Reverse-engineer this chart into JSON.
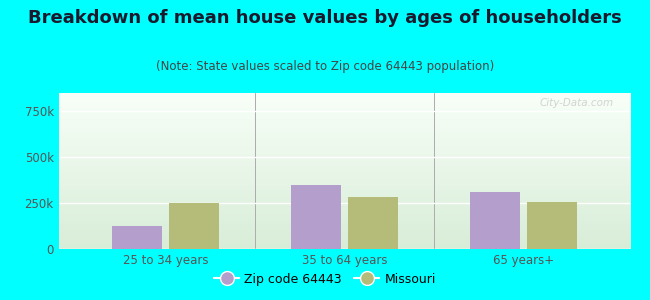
{
  "title": "Breakdown of mean house values by ages of householders",
  "subtitle": "(Note: State values scaled to Zip code 64443 population)",
  "categories": [
    "25 to 34 years",
    "35 to 64 years",
    "65 years+"
  ],
  "zip_values": [
    125000,
    350000,
    310000
  ],
  "state_values": [
    250000,
    285000,
    255000
  ],
  "ylim": [
    0,
    850000
  ],
  "yticks": [
    0,
    250000,
    500000,
    750000
  ],
  "bar_color_zip": "#b49fcc",
  "bar_color_state": "#b5bc7a",
  "background_outer": "#00ffff",
  "grid_color": "#e0e0d8",
  "legend_label_zip": "Zip code 64443",
  "legend_label_state": "Missouri",
  "title_fontsize": 13,
  "subtitle_fontsize": 8.5,
  "tick_fontsize": 8.5,
  "label_fontsize": 9,
  "bar_width": 0.28,
  "bar_gap": 0.04
}
